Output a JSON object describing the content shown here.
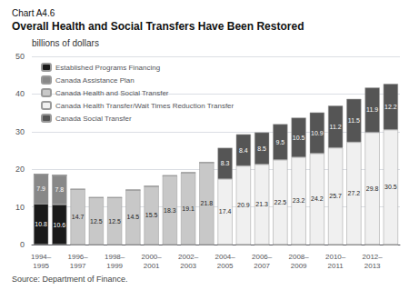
{
  "chart_data": {
    "type": "bar",
    "stacked": true,
    "subtitle": "Chart A4.6",
    "title": "Overall Health and Social Transfers Have Been Restored",
    "ylabel": "billions of dollars",
    "annotations": [
      "Source: Department of Finance."
    ],
    "categories": [
      "1994–\n1995",
      null,
      "1996–\n1997",
      null,
      "1998–\n1999",
      null,
      "2000–\n2001",
      null,
      "2002–\n2003",
      null,
      "2004–\n2005",
      null,
      "2006–\n2007",
      null,
      "2008–\n2009",
      null,
      "2010–\n2011",
      null,
      "2012–\n2013",
      null
    ],
    "series": [
      {
        "name": "Established Programs Financing",
        "color": "#1a1a1a",
        "values": [
          10.8,
          10.6,
          0,
          0,
          0,
          0,
          0,
          0,
          0,
          0,
          0,
          0,
          0,
          0,
          0,
          0,
          0,
          0,
          0,
          0
        ]
      },
      {
        "name": "Canada Assistance Plan",
        "color": "#888888",
        "values": [
          7.9,
          7.8,
          0,
          0,
          0,
          0,
          0,
          0,
          0,
          0,
          0,
          0,
          0,
          0,
          0,
          0,
          0,
          0,
          0,
          0
        ]
      },
      {
        "name": "Canada Health and Social Transfer",
        "color": "#c8c8c8",
        "values": [
          0,
          0,
          14.7,
          12.5,
          12.5,
          14.5,
          15.5,
          18.3,
          19.1,
          21.8,
          0,
          0,
          0,
          0,
          0,
          0,
          0,
          0,
          0,
          0
        ]
      },
      {
        "name": "Canada Health Transfer/Wait Times Reduction Transfer",
        "color": "#f0f0f0",
        "values": [
          0,
          0,
          0,
          0,
          0,
          0,
          0,
          0,
          0,
          0,
          17.4,
          20.9,
          21.3,
          22.5,
          23.2,
          24.2,
          25.7,
          27.2,
          29.8,
          30.5
        ]
      },
      {
        "name": "Canada Social Transfer",
        "color": "#555555",
        "values": [
          0,
          0,
          0,
          0,
          0,
          0,
          0,
          0,
          0,
          0,
          8.3,
          8.4,
          8.5,
          9.5,
          10.5,
          10.9,
          11.2,
          11.5,
          11.9,
          12.2
        ]
      }
    ],
    "ylim": [
      0,
      50
    ],
    "yticks": [
      0,
      10,
      20,
      30,
      40,
      50
    ],
    "grid": true,
    "legend": "upper left",
    "data_labels": true
  }
}
